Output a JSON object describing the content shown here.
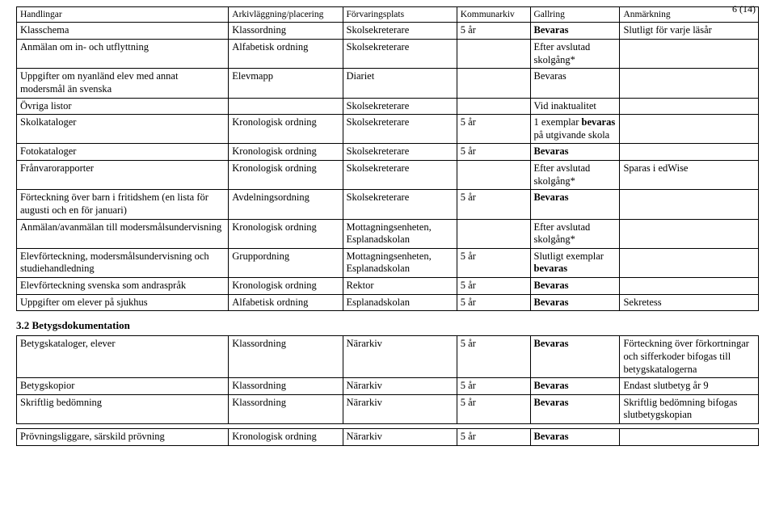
{
  "page_number": "6 (14)",
  "headers": [
    "Handlingar",
    "Arkivläggning/placering",
    "Förvaringsplats",
    "Kommunarkiv",
    "Gallring",
    "Anmärkning"
  ],
  "rows_a": [
    [
      "Klasschema",
      "Klassordning",
      "Skolsekreterare",
      "5 år",
      "Bevaras",
      "Slutligt för varje läsår"
    ],
    [
      "Anmälan om in- och utflyttning",
      "Alfabetisk ordning",
      "Skolsekreterare",
      "",
      "Efter avslutad skolgång*",
      ""
    ],
    [
      "Uppgifter om nyanländ elev med annat modersmål än svenska",
      "Elevmapp",
      "Diariet",
      "",
      "Bevaras",
      ""
    ],
    [
      "Övriga listor",
      "",
      "Skolsekreterare",
      "",
      "Vid inaktualitet",
      ""
    ],
    [
      "Skolkataloger",
      "Kronologisk ordning",
      "Skolsekreterare",
      "5 år",
      "1 exemplar bevaras på utgivande skola",
      ""
    ],
    [
      "Fotokataloger",
      "Kronologisk ordning",
      "Skolsekreterare",
      "5 år",
      "Bevaras",
      ""
    ],
    [
      "Frånvarorapporter",
      "Kronologisk ordning",
      "Skolsekreterare",
      "",
      "Efter avslutad skolgång*",
      "Sparas i edWise"
    ],
    [
      "Förteckning över barn i fritidshem (en lista för augusti och en för januari)",
      "Avdelningsordning",
      "Skolsekreterare",
      "5 år",
      "Bevaras",
      ""
    ],
    [
      "Anmälan/avanmälan till modersmålsundervisning",
      "Kronologisk ordning",
      "Mottagningsenheten, Esplanadskolan",
      "",
      "Efter avslutad skolgång*",
      ""
    ],
    [
      "Elevförteckning, modersmålsundervisning och studiehandledning",
      "Gruppordning",
      "Mottagningsenheten, Esplanadskolan",
      "5 år",
      "Slutligt exemplar bevaras",
      ""
    ],
    [
      "Elevförteckning svenska som andraspråk",
      "Kronologisk ordning",
      "Rektor",
      "5 år",
      "Bevaras",
      ""
    ],
    [
      "Uppgifter om elever på sjukhus",
      "Alfabetisk ordning",
      "Esplanadskolan",
      "5 år",
      "Bevaras",
      "Sekretess"
    ]
  ],
  "bold_map_a": {
    "0": {
      "4": true
    },
    "4": {
      "4_part": "bevaras"
    },
    "5": {
      "4": true
    },
    "7": {
      "4": true
    },
    "9": {
      "4_part": "bevaras"
    },
    "10": {
      "4": true
    },
    "11": {
      "4": true
    }
  },
  "section_b_title": "3.2 Betygsdokumentation",
  "rows_b": [
    [
      "Betygskataloger, elever",
      "Klassordning",
      "Närarkiv",
      "5 år",
      "Bevaras",
      "Förteckning över förkortningar och sifferkoder bifogas till betygskatalogerna"
    ],
    [
      "Betygskopior",
      "Klassordning",
      "Närarkiv",
      "5 år",
      "Bevaras",
      "Endast slutbetyg år 9"
    ],
    [
      "Skriftlig bedömning",
      "Klassordning",
      "Närarkiv",
      "5 år",
      "Bevaras",
      "Skriftlig bedömning bifogas slutbetygskopian"
    ],
    [
      "Prövningsliggare, särskild prövning",
      "Kronologisk ordning",
      "Närarkiv",
      "5 år",
      "Bevaras",
      ""
    ]
  ],
  "bold_map_b": {
    "0": {
      "4": true
    },
    "1": {
      "4": true
    },
    "2": {
      "4": true
    },
    "3": {
      "4": true
    }
  }
}
